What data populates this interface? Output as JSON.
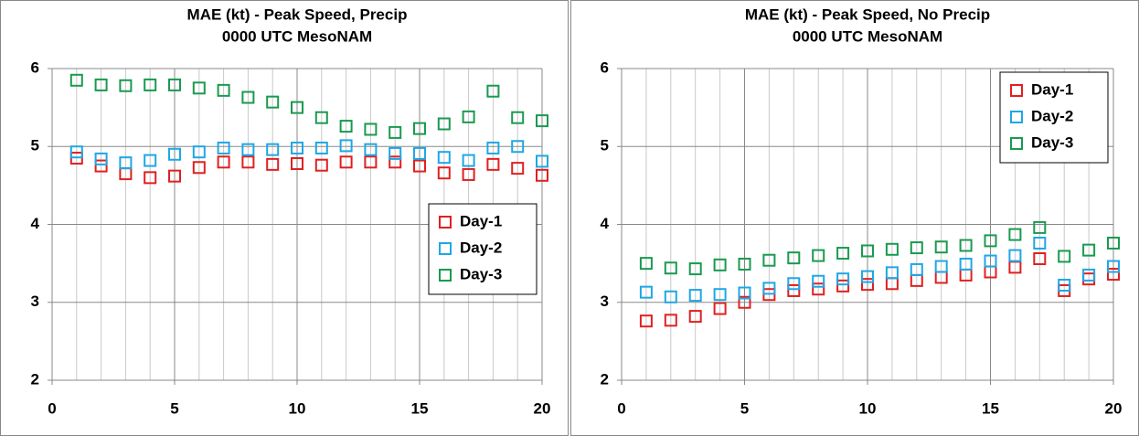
{
  "chart_data": [
    {
      "type": "scatter",
      "title": "MAE (kt) - Peak Speed, Precip",
      "subtitle": "0000 UTC MesoNAM",
      "x": [
        1,
        2,
        3,
        4,
        5,
        6,
        7,
        8,
        9,
        10,
        11,
        12,
        13,
        14,
        15,
        16,
        17,
        18,
        19,
        20
      ],
      "series": [
        {
          "name": "Day-1",
          "color": "#e02020",
          "values": [
            4.85,
            4.75,
            4.65,
            4.6,
            4.62,
            4.73,
            4.8,
            4.8,
            4.77,
            4.78,
            4.76,
            4.8,
            4.8,
            4.8,
            4.75,
            4.66,
            4.64,
            4.77,
            4.72,
            4.63
          ]
        },
        {
          "name": "Day-2",
          "color": "#1ea7e6",
          "values": [
            4.93,
            4.84,
            4.79,
            4.82,
            4.9,
            4.93,
            4.98,
            4.96,
            4.96,
            4.98,
            4.98,
            5.01,
            4.96,
            4.91,
            4.91,
            4.86,
            4.82,
            4.98,
            5.0,
            4.81
          ]
        },
        {
          "name": "Day-3",
          "color": "#1a9a50",
          "values": [
            5.85,
            5.79,
            5.78,
            5.79,
            5.79,
            5.75,
            5.72,
            5.63,
            5.57,
            5.5,
            5.37,
            5.26,
            5.22,
            5.18,
            5.23,
            5.29,
            5.38,
            5.71,
            5.37,
            5.33
          ]
        }
      ],
      "xlim": [
        0,
        20
      ],
      "xticks": [
        0,
        5,
        10,
        15,
        20
      ],
      "ylim": [
        2,
        6
      ],
      "yticks": [
        2,
        3,
        4,
        5,
        6
      ],
      "grid": true,
      "legend": "lower right"
    },
    {
      "type": "scatter",
      "title": "MAE (kt) - Peak Speed, No Precip",
      "subtitle": "0000 UTC MesoNAM",
      "x": [
        1,
        2,
        3,
        4,
        5,
        6,
        7,
        8,
        9,
        10,
        11,
        12,
        13,
        14,
        15,
        16,
        17,
        18,
        19,
        20
      ],
      "series": [
        {
          "name": "Day-1",
          "color": "#e02020",
          "values": [
            2.76,
            2.77,
            2.82,
            2.92,
            3.0,
            3.1,
            3.15,
            3.17,
            3.21,
            3.23,
            3.24,
            3.28,
            3.32,
            3.35,
            3.39,
            3.45,
            3.56,
            3.15,
            3.3,
            3.36
          ]
        },
        {
          "name": "Day-2",
          "color": "#1ea7e6",
          "values": [
            3.13,
            3.07,
            3.09,
            3.1,
            3.12,
            3.18,
            3.24,
            3.27,
            3.3,
            3.33,
            3.38,
            3.42,
            3.46,
            3.49,
            3.53,
            3.6,
            3.76,
            3.22,
            3.35,
            3.46
          ]
        },
        {
          "name": "Day-3",
          "color": "#1a9a50",
          "values": [
            3.5,
            3.44,
            3.43,
            3.48,
            3.49,
            3.54,
            3.57,
            3.6,
            3.63,
            3.66,
            3.68,
            3.7,
            3.71,
            3.73,
            3.79,
            3.87,
            3.96,
            3.59,
            3.67,
            3.76
          ]
        }
      ],
      "xlim": [
        0,
        20
      ],
      "xticks": [
        0,
        5,
        10,
        15,
        20
      ],
      "ylim": [
        2,
        6
      ],
      "yticks": [
        2,
        3,
        4,
        5,
        6
      ],
      "grid": true,
      "legend": "upper right"
    }
  ]
}
